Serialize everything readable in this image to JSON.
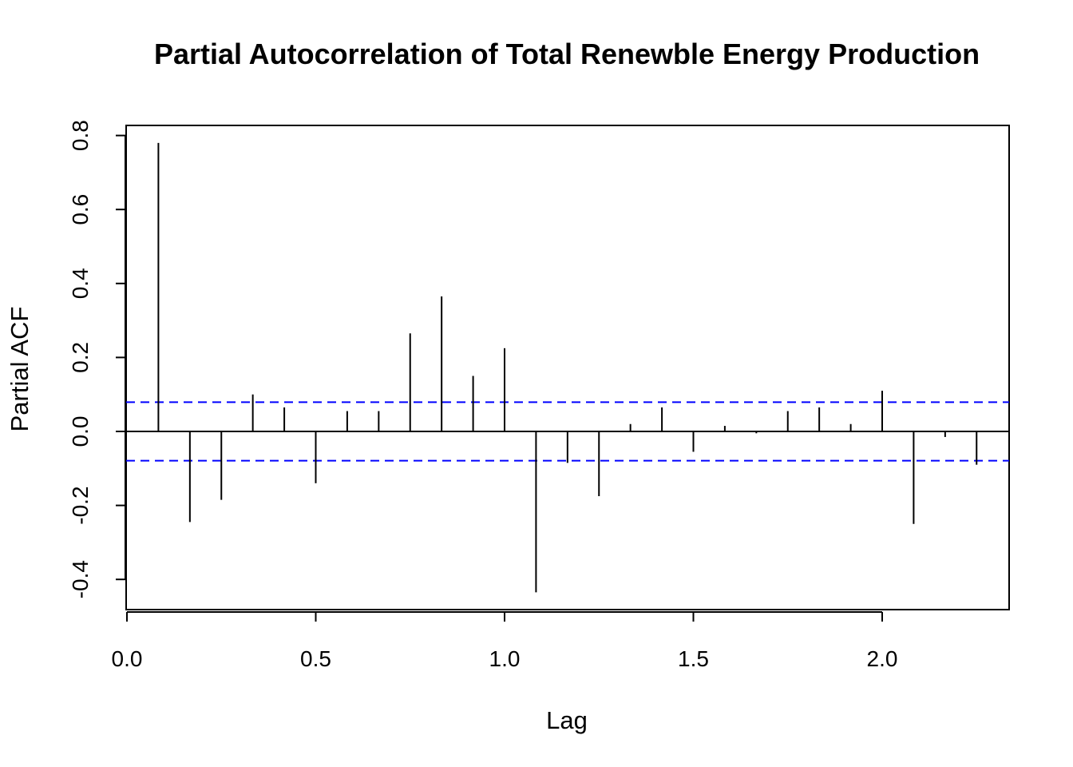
{
  "chart_data": {
    "type": "bar",
    "title": "Partial Autocorrelation of Total Renewble Energy Production",
    "xlabel": "Lag",
    "ylabel": "Partial ACF",
    "xlim": [
      0,
      2.3333
    ],
    "ylim": [
      -0.47,
      0.83
    ],
    "x_ticks": [
      0,
      0.5,
      1,
      1.5,
      2
    ],
    "x_tick_labels": [
      "0.0",
      "0.5",
      "1.0",
      "1.5",
      "2.0"
    ],
    "y_ticks": [
      -0.4,
      -0.2,
      0,
      0.2,
      0.4,
      0.6,
      0.8
    ],
    "y_tick_labels": [
      "-0.4",
      "-0.2",
      "0.0",
      "0.2",
      "0.4",
      "0.6",
      "0.8"
    ],
    "lags": [
      0.0833,
      0.1667,
      0.25,
      0.3333,
      0.4167,
      0.5,
      0.5833,
      0.6667,
      0.75,
      0.8333,
      0.9167,
      1.0,
      1.0833,
      1.1667,
      1.25,
      1.3333,
      1.4167,
      1.5,
      1.5833,
      1.6667,
      1.75,
      1.8333,
      1.9167,
      2.0,
      2.0833,
      2.1667,
      2.25
    ],
    "values": [
      0.78,
      -0.245,
      -0.185,
      0.1,
      0.065,
      -0.14,
      0.055,
      0.055,
      0.265,
      0.365,
      0.15,
      0.225,
      -0.435,
      -0.085,
      -0.175,
      0.02,
      0.065,
      -0.055,
      0.015,
      -0.005,
      0.055,
      0.065,
      0.02,
      0.11,
      -0.25,
      -0.015,
      -0.09
    ],
    "confidence_bound": 0.079,
    "colors": {
      "bars": "#000000",
      "confidence_lines": "#0000ff",
      "zero_line": "#000000"
    },
    "grid": false
  }
}
